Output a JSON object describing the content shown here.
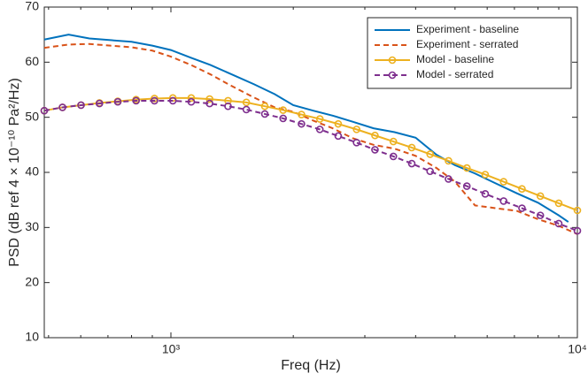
{
  "chart_data": {
    "type": "line",
    "xlabel": "Freq (Hz)",
    "ylabel": "PSD (dB ref 4 × 10⁻¹⁰ Pa²/Hz)",
    "xscale": "log",
    "xlim": [
      488,
      10000
    ],
    "ylim": [
      10,
      70
    ],
    "xticks": [
      {
        "value": 1000,
        "label": "10³"
      },
      {
        "value": 10000,
        "label": "10⁴"
      }
    ],
    "xminorticks": [
      500,
      600,
      700,
      800,
      900,
      2000,
      3000,
      4000,
      5000,
      6000,
      7000,
      8000,
      9000
    ],
    "yticks": [
      10,
      20,
      30,
      40,
      50,
      60,
      70
    ],
    "grid": false,
    "legend": "upper right",
    "series": [
      {
        "name": "Experiment - baseline",
        "color": "#0072bd",
        "dashed": false,
        "marker": false,
        "x": [
          488,
          560,
          630,
          710,
          800,
          900,
          1000,
          1120,
          1250,
          1400,
          1600,
          1800,
          2000,
          2240,
          2500,
          2800,
          3150,
          3550,
          4000,
          4500,
          5000,
          5600,
          6300,
          7100,
          8000,
          9000,
          9500
        ],
        "values": [
          64.1,
          65.0,
          64.3,
          64.0,
          63.7,
          63.0,
          62.2,
          60.8,
          59.5,
          57.9,
          56.0,
          54.2,
          52.2,
          51.2,
          50.3,
          49.2,
          48.0,
          47.3,
          46.3,
          43.2,
          41.3,
          39.8,
          38.0,
          36.2,
          34.5,
          32.2,
          31.0
        ]
      },
      {
        "name": "Experiment - serrated",
        "color": "#d95319",
        "dashed": true,
        "marker": false,
        "x": [
          488,
          560,
          630,
          710,
          800,
          900,
          1000,
          1120,
          1250,
          1400,
          1600,
          1800,
          2000,
          2240,
          2500,
          2800,
          3150,
          3550,
          4000,
          4500,
          5000,
          5600,
          6300,
          7100,
          8000,
          9000,
          10000
        ],
        "values": [
          62.6,
          63.2,
          63.3,
          63.0,
          62.7,
          62.1,
          61.0,
          59.5,
          57.8,
          55.8,
          53.6,
          51.8,
          51.0,
          49.4,
          48.0,
          46.2,
          45.0,
          44.3,
          43.0,
          40.8,
          38.3,
          34.0,
          33.5,
          33.0,
          31.5,
          30.3,
          28.8
        ]
      },
      {
        "name": "Model - baseline",
        "color": "#edb120",
        "dashed": false,
        "marker": true,
        "x": [
          488,
          541,
          601,
          667,
          740,
          821,
          911,
          1011,
          1122,
          1245,
          1382,
          1533,
          1702,
          1888,
          2095,
          2325,
          2580,
          2863,
          3177,
          3526,
          3913,
          4342,
          4818,
          5347,
          5933,
          6584,
          7306,
          8108,
          8997,
          10000
        ],
        "values": [
          51.2,
          51.8,
          52.2,
          52.6,
          52.9,
          53.2,
          53.4,
          53.5,
          53.5,
          53.3,
          53.0,
          52.7,
          52.0,
          51.3,
          50.5,
          49.7,
          48.8,
          47.8,
          46.7,
          45.6,
          44.5,
          43.3,
          42.1,
          40.8,
          39.6,
          38.3,
          37.0,
          35.7,
          34.4,
          33.1
        ]
      },
      {
        "name": "Model - serrated",
        "color": "#7e2f8e",
        "dashed": true,
        "marker": true,
        "x": [
          488,
          541,
          601,
          667,
          740,
          821,
          911,
          1011,
          1122,
          1245,
          1382,
          1533,
          1702,
          1888,
          2095,
          2325,
          2580,
          2863,
          3177,
          3526,
          3913,
          4342,
          4818,
          5347,
          5933,
          6584,
          7306,
          8108,
          8997,
          10000
        ],
        "values": [
          51.2,
          51.8,
          52.2,
          52.5,
          52.8,
          53.0,
          53.0,
          53.0,
          52.8,
          52.5,
          52.0,
          51.4,
          50.6,
          49.8,
          48.8,
          47.8,
          46.6,
          45.4,
          44.1,
          42.9,
          41.6,
          40.2,
          38.8,
          37.5,
          36.1,
          34.8,
          33.5,
          32.2,
          30.7,
          29.4
        ]
      }
    ]
  }
}
